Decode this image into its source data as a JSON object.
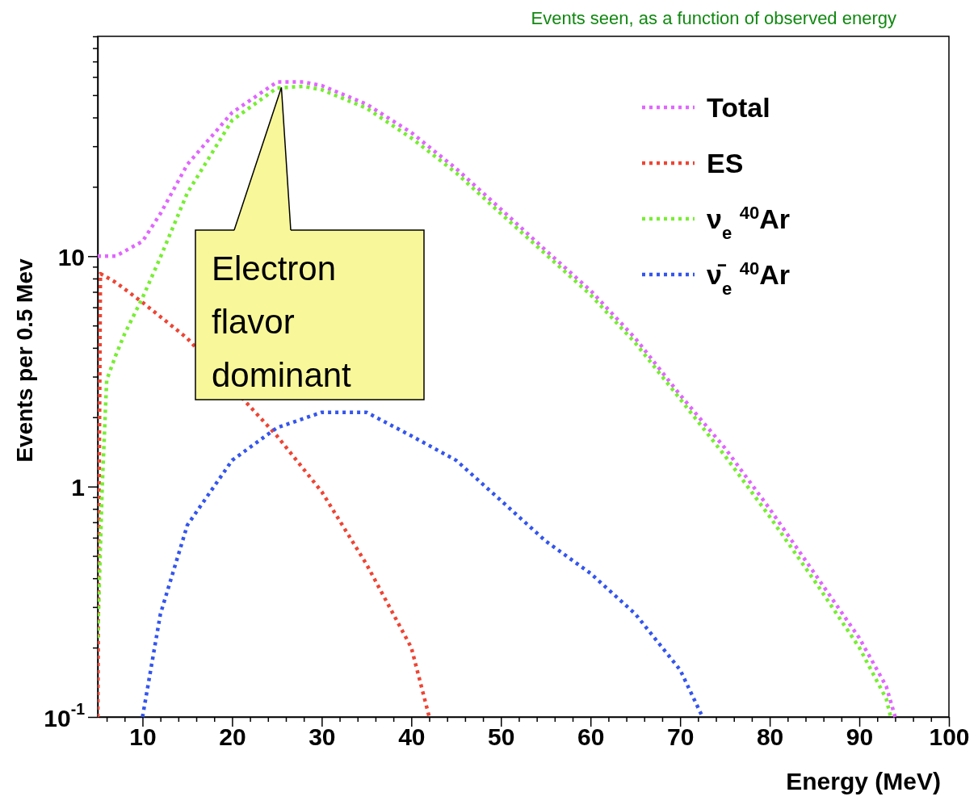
{
  "chart_data": {
    "type": "line",
    "title": "Events seen, as a function of observed energy",
    "xlabel": "Energy (MeV)",
    "ylabel": "Events per 0.5 Mev",
    "log": "y",
    "xlim": [
      5,
      100
    ],
    "ylim": [
      0.1,
      90
    ],
    "xticks": [
      {
        "value": 6,
        "label": null
      },
      {
        "value": 8,
        "label": null
      },
      10,
      {
        "value": 12,
        "label": null
      },
      {
        "value": 14,
        "label": null
      },
      {
        "value": 16,
        "label": null
      },
      {
        "value": 18,
        "label": null
      },
      20,
      {
        "value": 22,
        "label": null
      },
      {
        "value": 24,
        "label": null
      },
      {
        "value": 26,
        "label": null
      },
      {
        "value": 28,
        "label": null
      },
      30,
      {
        "value": 32,
        "label": null
      },
      {
        "value": 34,
        "label": null
      },
      {
        "value": 36,
        "label": null
      },
      {
        "value": 38,
        "label": null
      },
      40,
      {
        "value": 42,
        "label": null
      },
      {
        "value": 44,
        "label": null
      },
      {
        "value": 46,
        "label": null
      },
      {
        "value": 48,
        "label": null
      },
      50,
      {
        "value": 52,
        "label": null
      },
      {
        "value": 54,
        "label": null
      },
      {
        "value": 56,
        "label": null
      },
      {
        "value": 58,
        "label": null
      },
      60,
      {
        "value": 62,
        "label": null
      },
      {
        "value": 64,
        "label": null
      },
      {
        "value": 66,
        "label": null
      },
      {
        "value": 68,
        "label": null
      },
      70,
      {
        "value": 72,
        "label": null
      },
      {
        "value": 74,
        "label": null
      },
      {
        "value": 76,
        "label": null
      },
      {
        "value": 78,
        "label": null
      },
      80,
      {
        "value": 82,
        "label": null
      },
      {
        "value": 84,
        "label": null
      },
      {
        "value": 86,
        "label": null
      },
      {
        "value": 88,
        "label": null
      },
      90,
      {
        "value": 92,
        "label": null
      },
      {
        "value": 94,
        "label": null
      },
      {
        "value": 96,
        "label": null
      },
      {
        "value": 98,
        "label": null
      },
      100
    ],
    "yticks": [
      {
        "value": 0.1,
        "label": "10$^{-1}$"
      },
      {
        "value": 0.2,
        "label": null
      },
      {
        "value": 0.3,
        "label": null
      },
      {
        "value": 0.4,
        "label": null
      },
      {
        "value": 0.5,
        "label": null
      },
      {
        "value": 0.6,
        "label": null
      },
      {
        "value": 0.7,
        "label": null
      },
      {
        "value": 0.8,
        "label": null
      },
      {
        "value": 0.9,
        "label": null
      },
      1,
      {
        "value": 2,
        "label": null
      },
      {
        "value": 3,
        "label": null
      },
      {
        "value": 4,
        "label": null
      },
      {
        "value": 5,
        "label": null
      },
      {
        "value": 6,
        "label": null
      },
      {
        "value": 7,
        "label": null
      },
      {
        "value": 8,
        "label": null
      },
      {
        "value": 9,
        "label": null
      },
      10,
      {
        "value": 20,
        "label": null
      },
      {
        "value": 30,
        "label": null
      },
      {
        "value": 40,
        "label": null
      },
      {
        "value": 50,
        "label": null
      },
      {
        "value": 60,
        "label": null
      },
      {
        "value": 70,
        "label": null
      },
      {
        "value": 80,
        "label": null
      },
      {
        "value": 90,
        "label": null
      }
    ],
    "grid": false,
    "legend": "top right",
    "line_style": "dotted",
    "marker": "none",
    "series": [
      {
        "name": "Total",
        "color": "#e066ff",
        "x": [
          5,
          7,
          10,
          12,
          15,
          20,
          25,
          28,
          30,
          35,
          40,
          45,
          50,
          55,
          60,
          65,
          70,
          75,
          80,
          85,
          90,
          93,
          94
        ],
        "values": [
          10,
          10,
          11.6,
          15.3,
          25,
          42,
          57,
          57,
          55,
          45.7,
          34.4,
          24,
          16,
          10.6,
          7.1,
          4.4,
          2.5,
          1.47,
          0.8,
          0.42,
          0.22,
          0.136,
          0.1
        ]
      },
      {
        "name": "ES",
        "color": "#ee4433",
        "x": [
          5,
          5.3,
          7,
          10,
          15,
          20,
          25,
          30,
          35,
          40,
          42
        ],
        "values": [
          0.1,
          8.4,
          7.7,
          6.3,
          4.4,
          null,
          1.66,
          0.95,
          0.46,
          0.2,
          0.1
        ]
      },
      {
        "name": "ν$_{e}$ $^{40}$Ar",
        "color": "#77ee33",
        "x": [
          5,
          5.5,
          6,
          7,
          8,
          10,
          12,
          15,
          20,
          25,
          28,
          30,
          35,
          40,
          45,
          50,
          55,
          60,
          65,
          70,
          75,
          80,
          85,
          90,
          93,
          93.5
        ],
        "values": [
          0.22,
          1,
          2.9,
          3.7,
          4.6,
          6.6,
          9.9,
          18.8,
          38.9,
          53.7,
          54.6,
          52.8,
          43.9,
          32.6,
          23,
          15.3,
          10.2,
          6.8,
          4.2,
          2.4,
          1.36,
          0.74,
          0.39,
          0.2,
          0.12,
          0.1
        ]
      },
      {
        "name": "ν̄$_{e}$ $^{40}$Ar",
        "color": "#3355ee",
        "x": [
          10,
          12,
          15,
          20,
          25,
          30,
          35,
          40,
          45,
          50,
          55,
          60,
          65,
          70,
          72.5
        ],
        "values": [
          0.1,
          0.28,
          0.68,
          1.3,
          1.8,
          2.1,
          2.1,
          1.66,
          1.3,
          0.87,
          0.58,
          0.42,
          0.28,
          0.16,
          0.1
        ]
      }
    ],
    "annotations": [
      {
        "text": "Electron\nflavor\ndominant",
        "x": 25.5,
        "y": 54
      }
    ]
  }
}
